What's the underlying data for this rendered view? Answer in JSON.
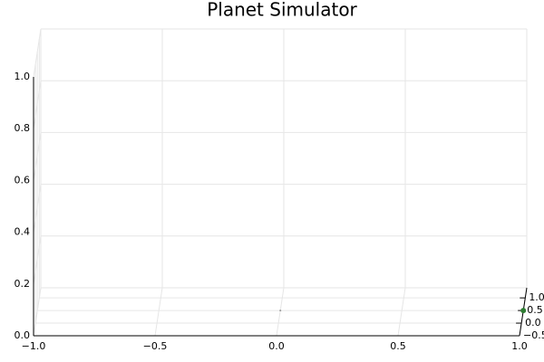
{
  "chart_data": {
    "type": "scatter3d",
    "title": "Planet Simulator",
    "xlim": [
      -1,
      1
    ],
    "xticks": [
      {
        "value": -1,
        "label": "−1.0"
      },
      {
        "value": -0.5,
        "label": "−0.5"
      },
      {
        "value": 0,
        "label": "0.0"
      },
      {
        "value": 0.5,
        "label": "0.5"
      },
      {
        "value": 1,
        "label": "1.0"
      }
    ],
    "ylim": [
      -0.5,
      1.4
    ],
    "yticks": [
      {
        "value": -0.5,
        "label": "−0.5"
      },
      {
        "value": 0,
        "label": "0.0"
      },
      {
        "value": 0.5,
        "label": "0.5"
      },
      {
        "value": 1,
        "label": "1.0"
      }
    ],
    "zlim": [
      0,
      1
    ],
    "zticks": [
      {
        "value": 0,
        "label": "0.0"
      },
      {
        "value": 0.2,
        "label": "0.2"
      },
      {
        "value": 0.4,
        "label": "0.4"
      },
      {
        "value": 0.6,
        "label": "0.6"
      },
      {
        "value": 0.8,
        "label": "0.8"
      },
      {
        "value": 1,
        "label": "1.0"
      }
    ],
    "grid": true,
    "series": [
      {
        "color": "#9a9a9a",
        "x": [
          0
        ],
        "y": [
          0.5
        ],
        "z": [
          0
        ]
      },
      {
        "color": "#2e7d32",
        "x": [
          1
        ],
        "y": [
          0.5
        ],
        "z": [
          0
        ]
      }
    ]
  }
}
